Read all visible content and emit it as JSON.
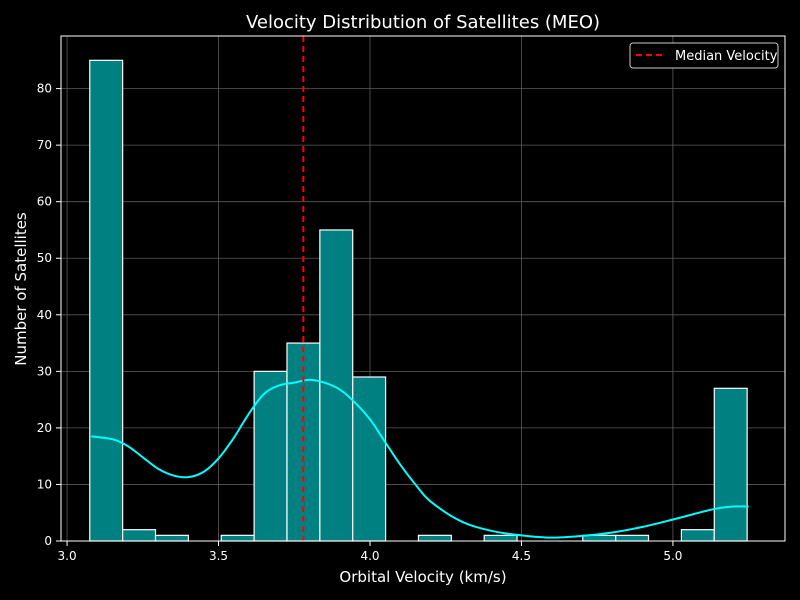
{
  "chart_data": {
    "type": "bar",
    "title": "Velocity Distribution of Satellites (MEO)",
    "xlabel": "Orbital Velocity (km/s)",
    "ylabel": "Number of Satellites",
    "xlim": [
      2.98,
      5.37
    ],
    "ylim": [
      0,
      89.3
    ],
    "x_ticks": [
      {
        "value": 3.0,
        "label": "3.0"
      },
      {
        "value": 3.5,
        "label": "3.5"
      },
      {
        "value": 4.0,
        "label": "4.0"
      },
      {
        "value": 4.5,
        "label": "4.5"
      },
      {
        "value": 5.0,
        "label": "5.0"
      }
    ],
    "y_ticks": [
      {
        "value": 0,
        "label": "0"
      },
      {
        "value": 10,
        "label": "10"
      },
      {
        "value": 20,
        "label": "20"
      },
      {
        "value": 30,
        "label": "30"
      },
      {
        "value": 40,
        "label": "40"
      },
      {
        "value": 50,
        "label": "50"
      },
      {
        "value": 60,
        "label": "60"
      },
      {
        "value": 70,
        "label": "70"
      },
      {
        "value": 80,
        "label": "80"
      }
    ],
    "grid": true,
    "legend_position": "top-right",
    "bins": {
      "start": 3.075,
      "width": 0.1085,
      "counts": [
        85,
        2,
        1,
        0,
        1,
        30,
        35,
        55,
        29,
        0,
        1,
        0,
        1,
        0,
        0,
        1,
        1,
        0,
        2,
        27
      ]
    },
    "kde": {
      "x": [
        3.08,
        3.15,
        3.2,
        3.25,
        3.3,
        3.35,
        3.4,
        3.45,
        3.5,
        3.55,
        3.6,
        3.65,
        3.7,
        3.75,
        3.8,
        3.85,
        3.9,
        3.95,
        4.0,
        4.05,
        4.1,
        4.15,
        4.2,
        4.3,
        4.4,
        4.5,
        4.6,
        4.7,
        4.8,
        4.9,
        5.0,
        5.1,
        5.15,
        5.2,
        5.25
      ],
      "y": [
        18.5,
        18.0,
        16.8,
        14.8,
        12.8,
        11.6,
        11.3,
        12.2,
        14.6,
        18.2,
        22.5,
        26.0,
        27.5,
        28.0,
        28.5,
        28.0,
        26.8,
        24.5,
        21.5,
        17.5,
        13.5,
        10.0,
        7.0,
        3.5,
        1.8,
        1.0,
        0.6,
        0.9,
        1.5,
        2.5,
        3.8,
        5.2,
        5.8,
        6.1,
        6.1
      ]
    },
    "median": 3.78,
    "series": [
      {
        "name": "Median Velocity",
        "color": "#ff0000",
        "style": "dashed"
      }
    ],
    "colors": {
      "bar_fill": "#008080",
      "bar_edge": "#ffffff",
      "kde_line": "#00ffff",
      "median_line": "#ff0000",
      "background": "#000000",
      "grid": "#5a5a5a",
      "axis": "#ffffff"
    }
  }
}
